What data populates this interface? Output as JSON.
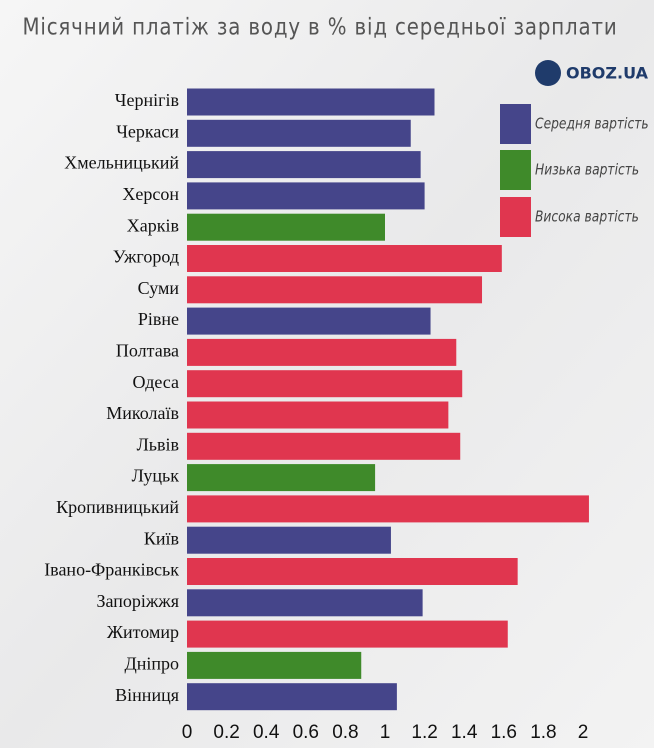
{
  "chart_data": {
    "type": "bar",
    "orientation": "horizontal",
    "title": "Місячний платіж за воду в % від середньої зарплати",
    "logo": "OBOZ.UA",
    "categories": [
      "Чернігів",
      "Черкаси",
      "Хмельницький",
      "Херсон",
      "Харків",
      "Ужгород",
      "Суми",
      "Рівне",
      "Полтава",
      "Одеса",
      "Миколаїв",
      "Львів",
      "Луцьк",
      "Кропивницький",
      "Київ",
      "Івано-Франківськ",
      "Запоріжжя",
      "Житомир",
      "Дніпро",
      "Вінниця"
    ],
    "series": [
      {
        "name": "Середня вартість",
        "color": "#45458a",
        "values": [
          1.25,
          1.13,
          1.18,
          1.2,
          null,
          null,
          null,
          1.23,
          null,
          null,
          null,
          null,
          null,
          null,
          1.03,
          null,
          1.19,
          null,
          null,
          1.06
        ]
      },
      {
        "name": "Низька вартість",
        "color": "#3f8a2a",
        "values": [
          null,
          null,
          null,
          null,
          1.0,
          null,
          null,
          null,
          null,
          null,
          null,
          null,
          0.95,
          null,
          null,
          null,
          null,
          null,
          0.88,
          null
        ]
      },
      {
        "name": "Висока вартість",
        "color": "#e0364f",
        "values": [
          null,
          null,
          null,
          null,
          null,
          1.59,
          1.49,
          null,
          1.36,
          1.39,
          1.32,
          1.38,
          null,
          2.03,
          null,
          1.67,
          null,
          1.62,
          null,
          null
        ]
      }
    ],
    "xlim": [
      0,
      2.1
    ],
    "xticks": [
      0,
      0.2,
      0.4,
      0.6,
      0.8,
      1,
      1.2,
      1.4,
      1.6,
      1.8,
      2
    ],
    "legend": "top-right"
  }
}
